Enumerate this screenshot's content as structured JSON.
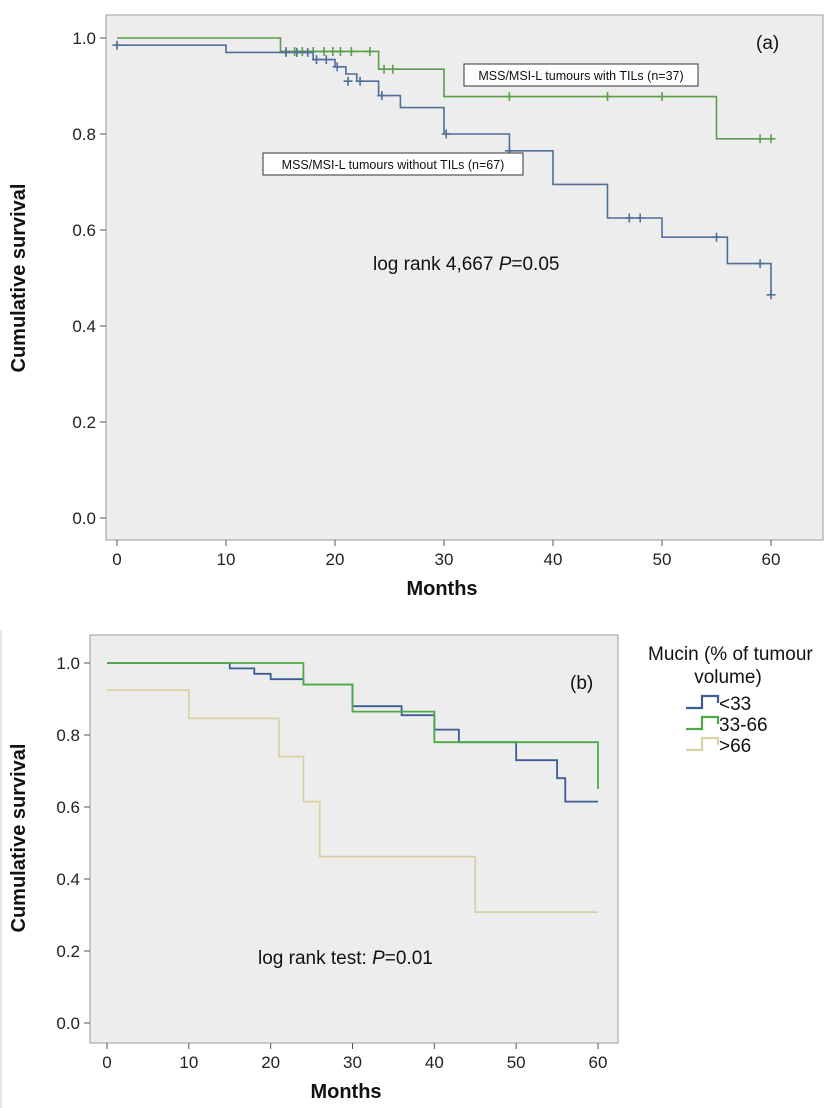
{
  "chart_data": [
    {
      "type": "line",
      "panel_label": "(a)",
      "xlabel": "Months",
      "ylabel": "Cumulative survival",
      "xlim": [
        0,
        60
      ],
      "ylim": [
        0,
        1
      ],
      "xticks": [
        "0",
        "10",
        "20",
        "30",
        "40",
        "50",
        "60"
      ],
      "yticks": [
        "0.0",
        "0.2",
        "0.4",
        "0.6",
        "0.8",
        "1.0"
      ],
      "grid": false,
      "annotation": {
        "prefix": "log rank 4,667 ",
        "p": "P",
        "suffix": "=0.05"
      },
      "series": [
        {
          "name": "MSS/MSI-L tumours with TILs (n=37)",
          "color": "#5aa04a",
          "steps": [
            [
              0,
              1.0
            ],
            [
              15,
              0.972
            ],
            [
              24,
              0.935
            ],
            [
              30,
              0.878
            ],
            [
              55,
              0.79
            ],
            [
              60,
              0.79
            ]
          ],
          "censored": [
            [
              15.5,
              0.972
            ],
            [
              16.3,
              0.972
            ],
            [
              17,
              0.972
            ],
            [
              18,
              0.972
            ],
            [
              19,
              0.972
            ],
            [
              19.8,
              0.972
            ],
            [
              20.5,
              0.972
            ],
            [
              21.5,
              0.972
            ],
            [
              23.2,
              0.972
            ],
            [
              24.5,
              0.935
            ],
            [
              25.3,
              0.935
            ],
            [
              36,
              0.878
            ],
            [
              45,
              0.878
            ],
            [
              50,
              0.878
            ],
            [
              59,
              0.79
            ],
            [
              60,
              0.79
            ]
          ]
        },
        {
          "name": "MSS/MSI-L tumours without TILs (n=67)",
          "color": "#4f6e9c",
          "steps": [
            [
              0,
              0.985
            ],
            [
              10,
              0.97
            ],
            [
              15,
              0.97
            ],
            [
              18,
              0.955
            ],
            [
              20,
              0.94
            ],
            [
              21,
              0.925
            ],
            [
              22,
              0.91
            ],
            [
              24,
              0.88
            ],
            [
              26,
              0.855
            ],
            [
              30,
              0.8
            ],
            [
              36,
              0.765
            ],
            [
              40,
              0.695
            ],
            [
              45,
              0.625
            ],
            [
              50,
              0.585
            ],
            [
              56,
              0.53
            ],
            [
              60,
              0.465
            ]
          ],
          "censored": [
            [
              0,
              0.985
            ],
            [
              15.5,
              0.97
            ],
            [
              16.5,
              0.97
            ],
            [
              17.5,
              0.97
            ],
            [
              18.3,
              0.955
            ],
            [
              19.2,
              0.955
            ],
            [
              20.2,
              0.94
            ],
            [
              21.2,
              0.91
            ],
            [
              22.3,
              0.91
            ],
            [
              24.3,
              0.88
            ],
            [
              30.2,
              0.8
            ],
            [
              36,
              0.765
            ],
            [
              47,
              0.625
            ],
            [
              48,
              0.625
            ],
            [
              55,
              0.585
            ],
            [
              59,
              0.53
            ],
            [
              60,
              0.465
            ]
          ]
        }
      ]
    },
    {
      "type": "line",
      "panel_label": "(b)",
      "xlabel": "Months",
      "ylabel": "Cumulative survival",
      "xlim": [
        0,
        60
      ],
      "ylim": [
        0,
        1
      ],
      "xticks": [
        "0",
        "10",
        "20",
        "30",
        "40",
        "50",
        "60"
      ],
      "yticks": [
        "0.0",
        "0.2",
        "0.4",
        "0.6",
        "0.8",
        "1.0"
      ],
      "grid": false,
      "annotation": {
        "prefix": "log rank test: ",
        "p": "P",
        "suffix": "=0.01"
      },
      "legend": {
        "title_line1": "Mucin (% of tumour",
        "title_line2": "volume)",
        "placement": "right"
      },
      "series": [
        {
          "name": "<33",
          "color": "#3b5c98",
          "steps": [
            [
              0,
              1.0
            ],
            [
              15,
              0.985
            ],
            [
              18,
              0.97
            ],
            [
              20,
              0.955
            ],
            [
              24,
              0.94
            ],
            [
              30,
              0.88
            ],
            [
              36,
              0.855
            ],
            [
              40,
              0.815
            ],
            [
              43,
              0.78
            ],
            [
              50,
              0.73
            ],
            [
              55,
              0.68
            ],
            [
              56,
              0.615
            ],
            [
              60,
              0.615
            ]
          ]
        },
        {
          "name": "33-66",
          "color": "#4caa45",
          "steps": [
            [
              0,
              1.0
            ],
            [
              24,
              0.94
            ],
            [
              30,
              0.865
            ],
            [
              40,
              0.78
            ],
            [
              60,
              0.78
            ],
            [
              60,
              0.65
            ]
          ]
        },
        {
          "name": ">66",
          "color": "#d9d2a2",
          "steps": [
            [
              0,
              0.925
            ],
            [
              10,
              0.846
            ],
            [
              21,
              0.74
            ],
            [
              24,
              0.615
            ],
            [
              26,
              0.462
            ],
            [
              45,
              0.308
            ],
            [
              60,
              0.308
            ]
          ]
        }
      ]
    }
  ]
}
